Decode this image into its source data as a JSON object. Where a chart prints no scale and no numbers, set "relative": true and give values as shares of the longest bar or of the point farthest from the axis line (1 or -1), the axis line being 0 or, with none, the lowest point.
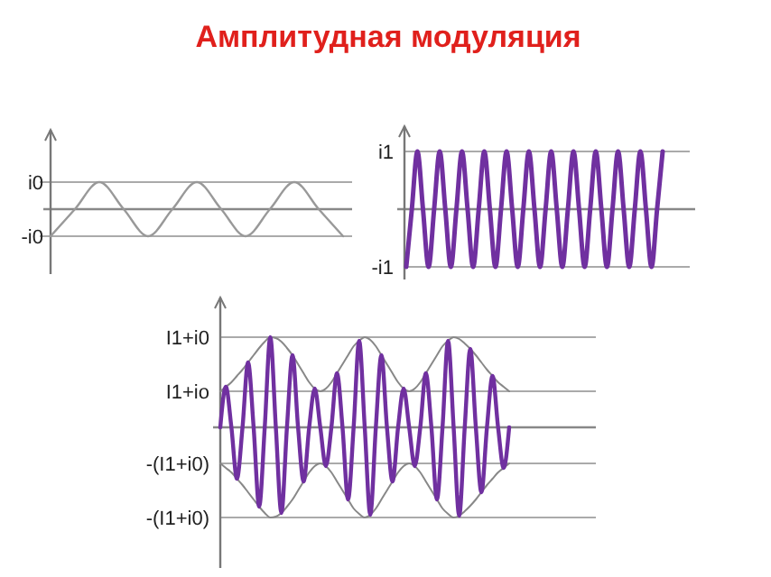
{
  "chart_data": [
    {
      "type": "line",
      "title": "Амплитудная модуляция",
      "categories": [
        null,
        null,
        null,
        null,
        null,
        null,
        null,
        null,
        null,
        null,
        null,
        null,
        null
      ],
      "relative": true,
      "ref_lines": [
        {
          "axis": "y",
          "value": 1,
          "label": "i0"
        },
        {
          "axis": "y",
          "value": -1,
          "label": "-i0"
        }
      ],
      "series": [
        {
          "color": "#999999",
          "values": [
            -1,
            0,
            1,
            0,
            -1,
            0,
            1,
            0,
            -1,
            0,
            1,
            0,
            -1
          ]
        }
      ]
    },
    {
      "type": "line",
      "categories": [
        null,
        null,
        null,
        null,
        null,
        null,
        null,
        null,
        null,
        null,
        null,
        null,
        null,
        null,
        null,
        null,
        null,
        null,
        null,
        null,
        null,
        null,
        null,
        null,
        null,
        null,
        null,
        null,
        null,
        null,
        null,
        null,
        null,
        null,
        null,
        null,
        null,
        null,
        null,
        null,
        null,
        null,
        null,
        null,
        null,
        null,
        null
      ],
      "relative": true,
      "ref_lines": [
        {
          "axis": "y",
          "value": 1,
          "label": "i1"
        },
        {
          "axis": "y",
          "value": -1,
          "label": "-i1"
        }
      ],
      "series": [
        {
          "color": "#7030a0",
          "values": [
            -1,
            0,
            1,
            0,
            -1,
            0,
            1,
            0,
            -1,
            0,
            1,
            0,
            -1,
            0,
            1,
            0,
            -1,
            0,
            1,
            0,
            -1,
            0,
            1,
            0,
            -1,
            0,
            1,
            0,
            -1,
            0,
            1,
            0,
            -1,
            0,
            1,
            0,
            -1,
            0,
            1,
            0,
            -1,
            0,
            1,
            0,
            -1,
            0,
            1
          ]
        }
      ]
    },
    {
      "type": "line",
      "categories": [
        null,
        null,
        null,
        null,
        null,
        null,
        null,
        null,
        null,
        null,
        null,
        null,
        null,
        null,
        null,
        null,
        null,
        null,
        null,
        null,
        null,
        null,
        null,
        null,
        null,
        null,
        null,
        null,
        null,
        null,
        null,
        null,
        null,
        null,
        null,
        null,
        null,
        null,
        null,
        null,
        null,
        null,
        null,
        null,
        null,
        null,
        null,
        null,
        null,
        null,
        null,
        null,
        null
      ],
      "relative": true,
      "ref_lines": [
        {
          "axis": "y",
          "value": 1,
          "label": "I1+i0"
        },
        {
          "axis": "y",
          "value": 0.4,
          "label": "I1+io"
        },
        {
          "axis": "y",
          "value": -0.4,
          "label": "-(I1+i0)"
        },
        {
          "axis": "y",
          "value": -1,
          "label": "-(I1+i0)"
        }
      ],
      "series": [
        {
          "color": "#888888",
          "values": [
            0.4,
            0.45,
            0.5,
            0.57,
            0.64,
            0.72,
            0.8,
            0.88,
            0.95,
            1,
            0.99,
            0.95,
            0.88,
            0.8,
            0.7,
            0.6,
            0.5,
            0.43,
            0.4,
            0.43,
            0.5,
            0.6,
            0.7,
            0.8,
            0.9,
            0.96,
            1,
            0.97,
            0.9,
            0.8,
            0.7,
            0.6,
            0.5,
            0.43,
            0.4,
            0.43,
            0.5,
            0.6,
            0.7,
            0.8,
            0.9,
            0.96,
            1,
            0.98,
            0.93,
            0.87,
            0.8,
            0.72,
            0.64,
            0.57,
            0.5,
            0.45,
            0.4
          ]
        },
        {
          "color": "#888888",
          "values": [
            -0.4,
            -0.45,
            -0.5,
            -0.57,
            -0.64,
            -0.72,
            -0.8,
            -0.88,
            -0.95,
            -1,
            -0.99,
            -0.95,
            -0.88,
            -0.8,
            -0.7,
            -0.6,
            -0.5,
            -0.43,
            -0.4,
            -0.43,
            -0.5,
            -0.6,
            -0.7,
            -0.8,
            -0.9,
            -0.96,
            -1,
            -0.97,
            -0.9,
            -0.8,
            -0.7,
            -0.6,
            -0.5,
            -0.43,
            -0.4,
            -0.43,
            -0.5,
            -0.6,
            -0.7,
            -0.8,
            -0.9,
            -0.96,
            -1,
            -0.98,
            -0.93,
            -0.87,
            -0.8,
            -0.72,
            -0.64,
            -0.57,
            -0.5,
            -0.45,
            -0.4
          ]
        },
        {
          "color": "#7030a0",
          "values": [
            0,
            0.45,
            0,
            -0.57,
            0,
            0.72,
            0,
            -0.88,
            0,
            1,
            0,
            -0.95,
            0,
            0.8,
            0,
            -0.6,
            0,
            0.43,
            0,
            -0.43,
            0,
            0.6,
            0,
            -0.8,
            0,
            0.96,
            0,
            -0.97,
            0,
            0.8,
            0,
            -0.6,
            0,
            0.43,
            0,
            -0.43,
            0,
            0.6,
            0,
            -0.8,
            0,
            0.96,
            0,
            -0.98,
            0,
            0.87,
            0,
            -0.72,
            0,
            0.57,
            0,
            -0.45,
            0
          ]
        }
      ]
    }
  ]
}
